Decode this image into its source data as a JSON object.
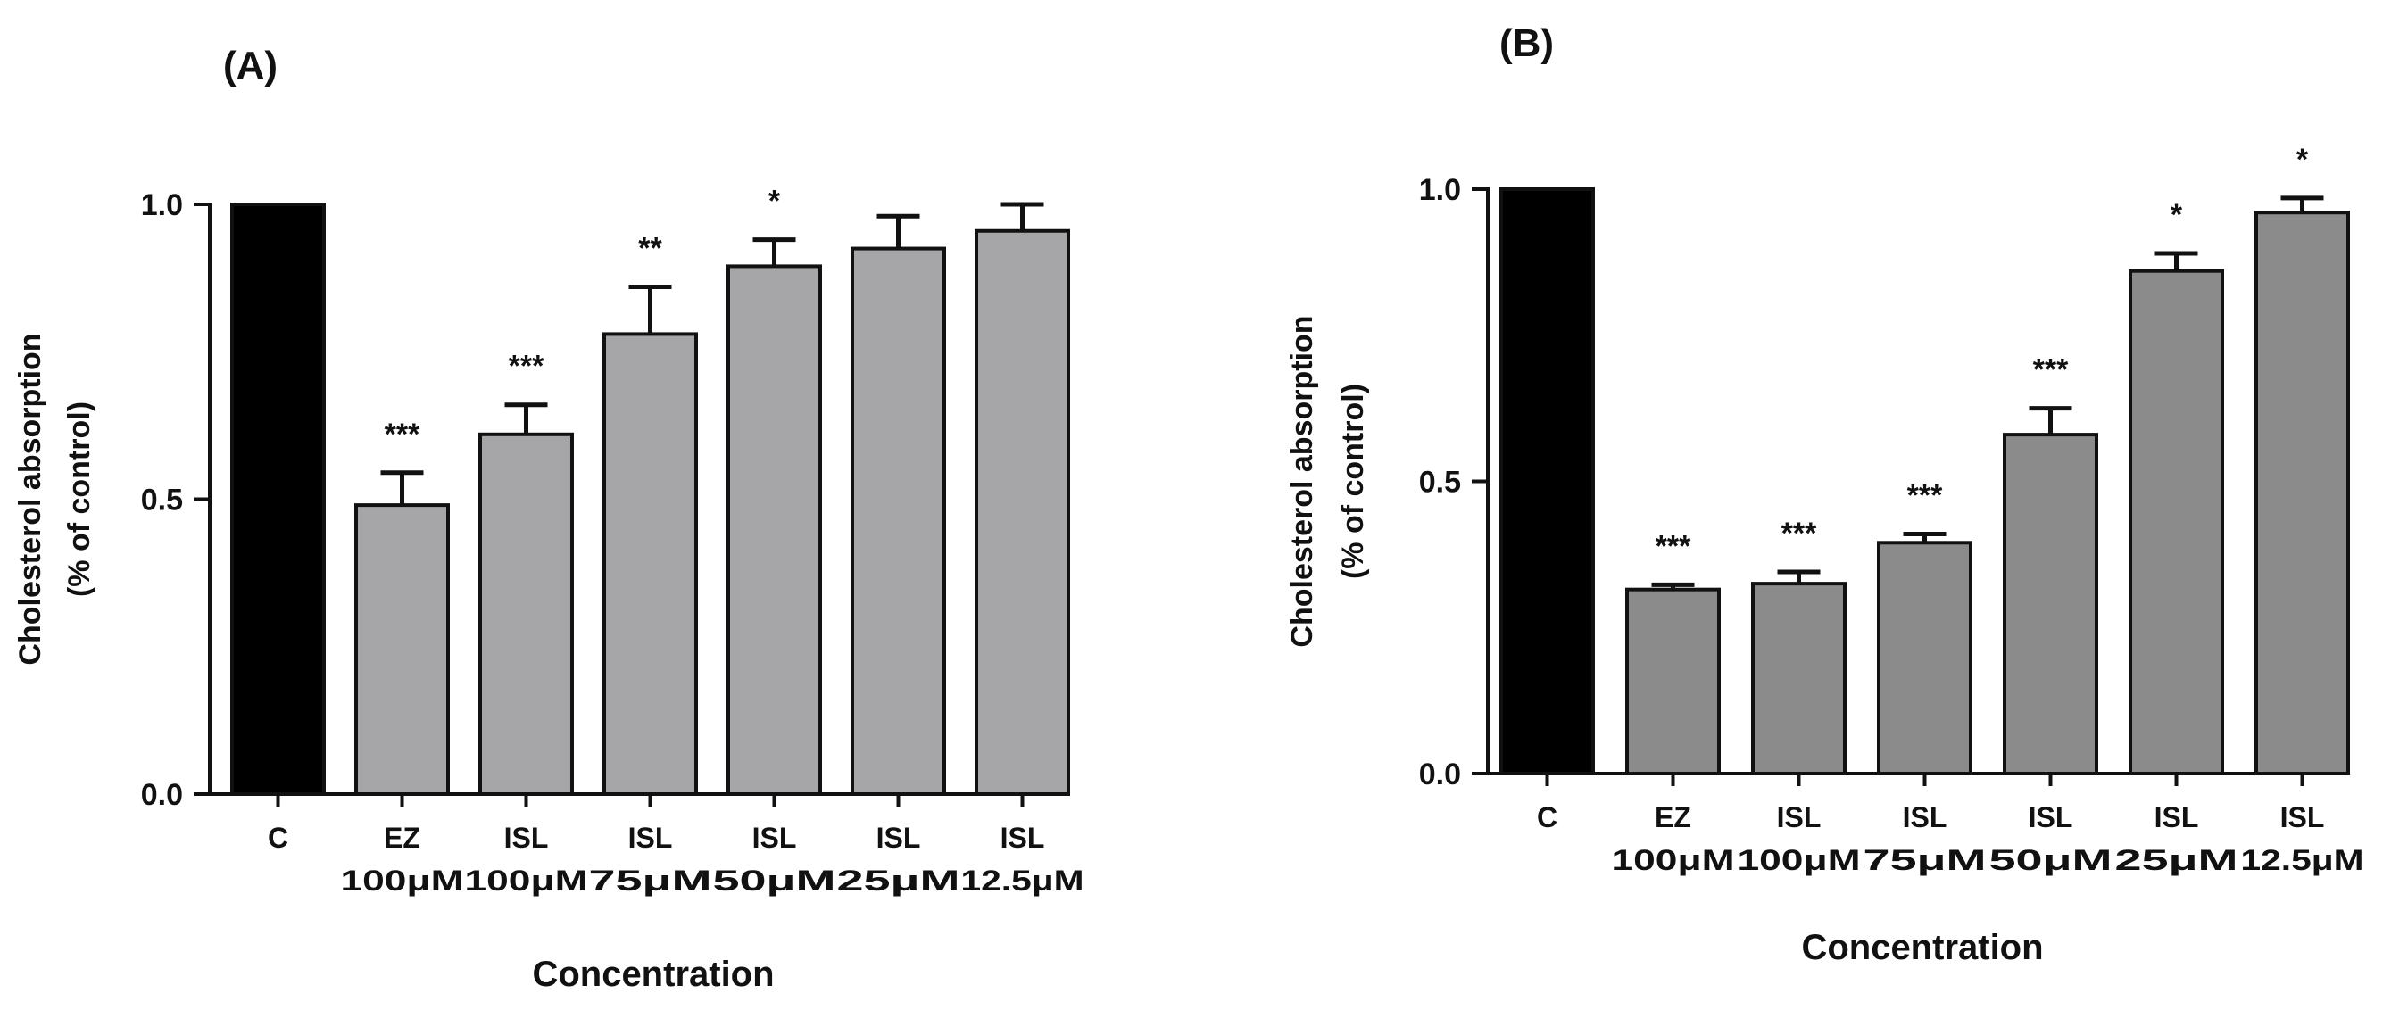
{
  "figure_colors": {
    "axis": "#111111",
    "control_bar": "#000000",
    "panel_a_bar": "#a6a6a8",
    "panel_b_bar": "#8b8b8b"
  },
  "chart_data": [
    {
      "panel_label": "(A)",
      "type": "bar",
      "ylabel_line1": "Cholesterol absorption",
      "ylabel_line2": "(% of control)",
      "xlabel": "Concentration",
      "ylim": [
        0,
        1.0
      ],
      "yticks": [
        "0.0",
        "0.5",
        "1.0"
      ],
      "categories": [
        {
          "line1": "C",
          "line2": ""
        },
        {
          "line1": "EZ",
          "line2": "100μM"
        },
        {
          "line1": "ISL",
          "line2": "100μM"
        },
        {
          "line1": "ISL",
          "line2": "75μM"
        },
        {
          "line1": "ISL",
          "line2": "50μM"
        },
        {
          "line1": "ISL",
          "line2": "25μM"
        },
        {
          "line1": "ISL",
          "line2": "12.5μM"
        }
      ],
      "values": [
        1.0,
        0.49,
        0.61,
        0.78,
        0.895,
        0.925,
        0.955
      ],
      "errors": [
        0,
        0.055,
        0.05,
        0.08,
        0.045,
        0.055,
        0.045
      ],
      "significance": [
        "",
        "***",
        "***",
        "**",
        "*",
        "",
        ""
      ]
    },
    {
      "panel_label": "(B)",
      "type": "bar",
      "ylabel_line1": "Cholesterol absorption",
      "ylabel_line2": "(% of control)",
      "xlabel": "Concentration",
      "ylim": [
        0,
        1.0
      ],
      "yticks": [
        "0.0",
        "0.5",
        "1.0"
      ],
      "categories": [
        {
          "line1": "C",
          "line2": ""
        },
        {
          "line1": "EZ",
          "line2": "100μM"
        },
        {
          "line1": "ISL",
          "line2": "100μM"
        },
        {
          "line1": "ISL",
          "line2": "75μM"
        },
        {
          "line1": "ISL",
          "line2": "50μM"
        },
        {
          "line1": "ISL",
          "line2": "25μM"
        },
        {
          "line1": "ISL",
          "line2": "12.5μM"
        }
      ],
      "values": [
        1.0,
        0.315,
        0.325,
        0.395,
        0.58,
        0.86,
        0.96
      ],
      "errors": [
        0,
        0.008,
        0.02,
        0.015,
        0.045,
        0.03,
        0.025
      ],
      "significance": [
        "",
        "***",
        "***",
        "***",
        "***",
        "*",
        "*"
      ]
    }
  ]
}
